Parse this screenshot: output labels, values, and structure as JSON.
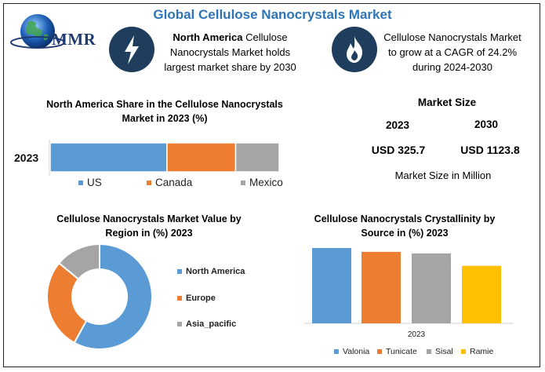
{
  "title": "Global Cellulose Nanocrystals Market",
  "logo": {
    "text": "MMR",
    "icon": "globe-icon"
  },
  "facts": [
    {
      "icon": "lightning-icon",
      "bold": "North America",
      "text": " Cellulose Nanocrystals Market holds largest market share by 2030"
    },
    {
      "icon": "flame-icon",
      "bold": "",
      "text": "Cellulose Nanocrystals Market to grow at a CAGR of 24.2% during 2024-2030"
    }
  ],
  "share_panel": {
    "title": "North America Share in the Cellulose Nanocrystals Market in 2023 (%)"
  },
  "market_size": {
    "title": "Market Size",
    "years": [
      "2023",
      "2030"
    ],
    "values": [
      "USD 325.7",
      "USD 1123.8"
    ],
    "note": "Market Size in Million"
  },
  "region_panel": {
    "title": "Cellulose Nanocrystals Market Value by Region in (%) 2023"
  },
  "source_panel": {
    "title": "Cellulose Nanocrystals Crystallinity by Source in (%) 2023"
  },
  "chart_data": [
    {
      "type": "bar",
      "orientation": "horizontal-stacked",
      "categories": [
        "2023"
      ],
      "series": [
        {
          "name": "US",
          "values": [
            51
          ],
          "color": "#5B9BD5"
        },
        {
          "name": "Canada",
          "values": [
            30
          ],
          "color": "#ED7D31"
        },
        {
          "name": "Mexico",
          "values": [
            19
          ],
          "color": "#A5A5A5"
        }
      ],
      "xlim": [
        0,
        100
      ],
      "legend": "bottom"
    },
    {
      "type": "pie",
      "style": "donut",
      "slices": [
        {
          "name": "North America",
          "value": 58,
          "color": "#5B9BD5"
        },
        {
          "name": "Europe",
          "value": 28,
          "color": "#ED7D31"
        },
        {
          "name": "Asia_pacific",
          "value": 14,
          "color": "#A5A5A5"
        }
      ],
      "legend": "right"
    },
    {
      "type": "bar",
      "categories": [
        "2023"
      ],
      "series": [
        {
          "name": "Valonia",
          "values": [
            97
          ],
          "color": "#5B9BD5"
        },
        {
          "name": "Tunicate",
          "values": [
            92
          ],
          "color": "#ED7D31"
        },
        {
          "name": "Sisal",
          "values": [
            90
          ],
          "color": "#A5A5A5"
        },
        {
          "name": "Ramie",
          "values": [
            74
          ],
          "color": "#FFC000"
        }
      ],
      "ylim": [
        0,
        100
      ],
      "legend": "bottom"
    }
  ]
}
